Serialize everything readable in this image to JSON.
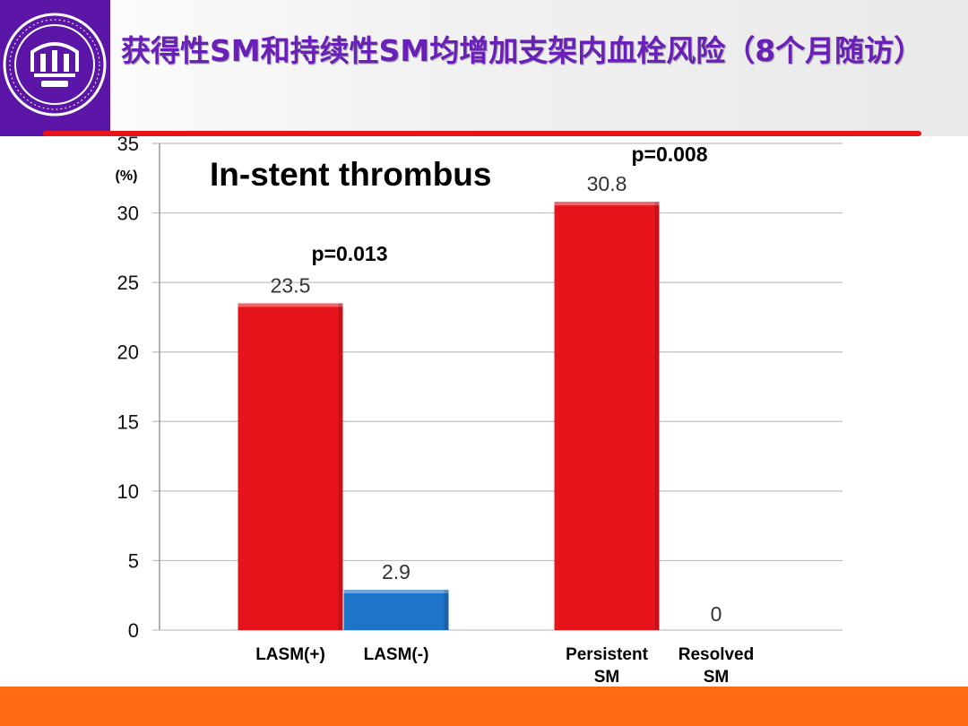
{
  "slide": {
    "title": "获得性SM和持续性SM均增加支架内血栓风险（8个月随访）",
    "accent_title_color": "#6a1fb8",
    "logo_color": "#5b16a8",
    "rule_color": "#e8141c",
    "footer_color": "#ff6a13"
  },
  "chart_data": {
    "type": "bar",
    "title": "In-stent thrombus",
    "ylabel": "(%)",
    "ylim": [
      0,
      35
    ],
    "yticks": [
      0,
      5,
      10,
      15,
      20,
      25,
      30,
      35
    ],
    "grid": true,
    "categories": [
      [
        "LASM(+)"
      ],
      [
        "LASM(-)"
      ],
      [
        "Persistent",
        "SM"
      ],
      [
        "Resolved",
        "SM"
      ]
    ],
    "values": [
      23.5,
      2.9,
      30.8,
      0
    ],
    "value_labels": [
      "23.5",
      "2.9",
      "30.8",
      "0"
    ],
    "colors": [
      "#e8141c",
      "#1f73c8",
      "#e8141c",
      "#e8141c"
    ],
    "annotations": [
      "p=0.013",
      "p=0.008"
    ]
  }
}
